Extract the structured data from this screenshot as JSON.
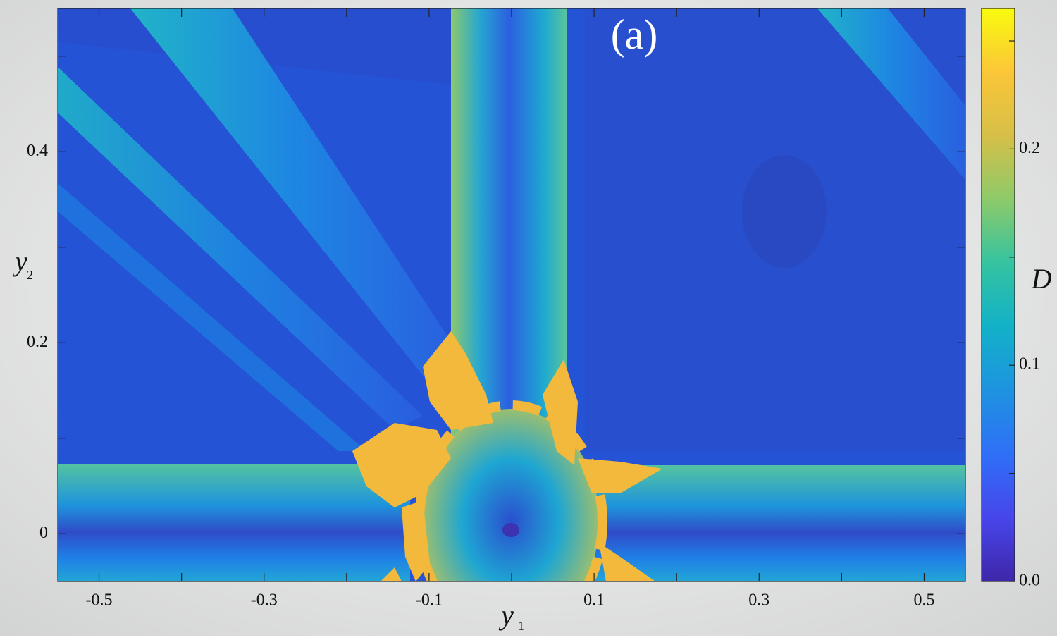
{
  "chart_data": {
    "type": "heatmap",
    "annotation": "(a)",
    "xlabel": "y",
    "xlabel_subscript": "1",
    "ylabel": "y",
    "ylabel_subscript": "2",
    "colorbar_label": "D",
    "xlim": [
      -0.55,
      0.55
    ],
    "xticks": [
      -0.5,
      -0.3,
      -0.1,
      0.1,
      0.3,
      0.5
    ],
    "xminorticks": [
      -0.4,
      -0.2,
      0,
      0.2,
      0.4
    ],
    "ylim": [
      -0.05,
      0.55
    ],
    "yticks": [
      0,
      0.2,
      0.4
    ],
    "yminorticks": [
      0.1,
      0.3,
      0.5
    ],
    "clim": [
      0,
      0.265
    ],
    "cticks": [
      {
        "value": 0,
        "label": "0.0"
      },
      0.1,
      0.2
    ],
    "cminorticks": [
      0.05,
      0.15,
      0.25
    ],
    "colormap": [
      "#3e26a8",
      "#4746eb",
      "#2f6ff7",
      "#1e93e0",
      "#12b1c8",
      "#35c3a0",
      "#8dca6a",
      "#d6bf48",
      "#fbc638",
      "#f9fb0e"
    ]
  }
}
